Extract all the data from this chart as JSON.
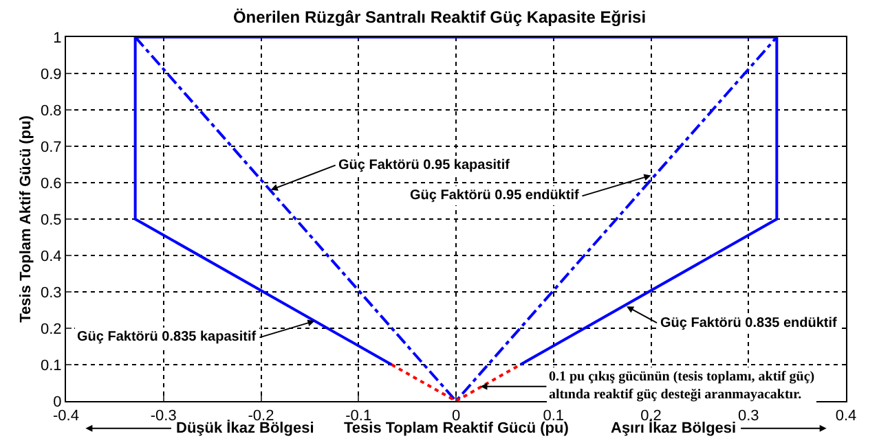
{
  "chart_data": {
    "type": "line",
    "title": "Önerilen Rüzgâr Santralı Reaktif Güç Kapasite Eğrisi",
    "xlabel": "Tesis Toplam Reaktif Gücü (pu)",
    "ylabel": "Tesis Toplam Aktif Gücü (pu)",
    "series": [
      {
        "color": "#0000ff",
        "line_style": "solid",
        "x": [
          -0.066,
          -0.329,
          -0.329,
          0.329,
          0.329,
          0.066
        ],
        "values": [
          0.1,
          0.5,
          1,
          1,
          0.5,
          0.1
        ]
      },
      {
        "color": "#0000ff",
        "line_style": "dashdot",
        "x": [
          -0.329,
          0,
          0.329
        ],
        "values": [
          1,
          0,
          1
        ]
      },
      {
        "color": "#ff0000",
        "line_style": "dotted",
        "x": [
          -0.066,
          0,
          0.066
        ],
        "values": [
          0.1,
          0,
          0.1
        ]
      }
    ],
    "xlim": [
      -0.4,
      0.4
    ],
    "xticks": [
      -0.4,
      -0.3,
      -0.2,
      -0.1,
      0,
      0.1,
      0.2,
      0.3,
      0.4
    ],
    "ylim": [
      0,
      1
    ],
    "yticks": [
      0,
      0.1,
      0.2,
      0.3,
      0.4,
      0.5,
      0.6,
      0.7,
      0.8,
      0.9,
      1
    ],
    "grid": true,
    "marker": "none",
    "annotations": [
      {
        "text": "Güç Faktörü 0.95 kapasitif",
        "x": -0.19,
        "y": 0.58
      },
      {
        "text": "Güç Faktörü 0.95 endüktif",
        "x": 0.2,
        "y": 0.62
      },
      {
        "text": "Güç Faktörü 0.835 kapasitif",
        "x": -0.145,
        "y": 0.22
      },
      {
        "text": "Güç Faktörü 0.835 endüktif",
        "x": 0.175,
        "y": 0.26
      },
      {
        "text": "0.1 pu çıkış gücünün (tesis toplamı, aktif güç)\naltında reaktif güç desteği aranmayacaktır.",
        "x": 0.025,
        "y": 0.04
      },
      "Düşük İkaz Bölgesi",
      "Aşırı İkaz Bölgesi"
    ]
  }
}
